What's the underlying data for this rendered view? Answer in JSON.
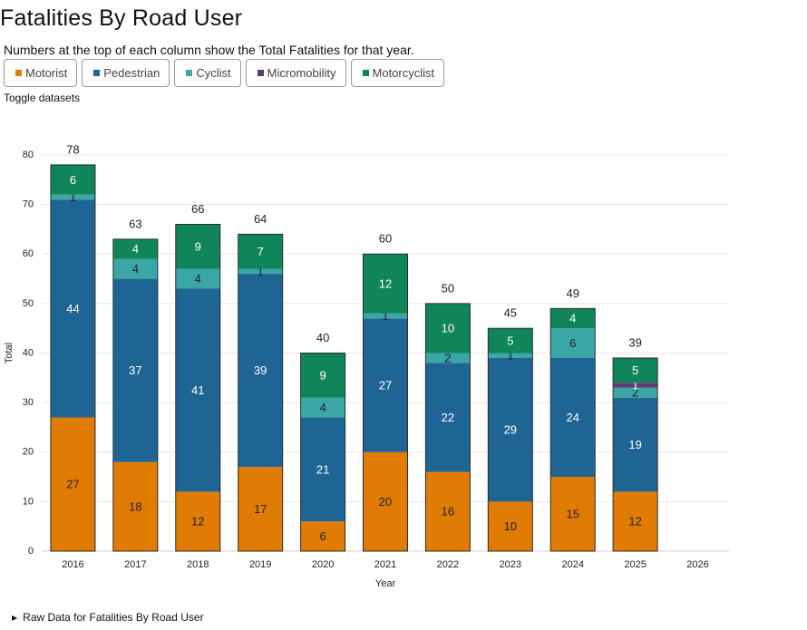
{
  "page": {
    "title": "Fatalities By Road User",
    "description": "Numbers at the top of each column show the Total Fatalities for that year.",
    "toggle_label": "Toggle datasets",
    "raw_data_label": "Raw Data for Fatalities By Road User"
  },
  "legend": [
    {
      "label": "Motorist",
      "color": "#e07b03"
    },
    {
      "label": "Pedestrian",
      "color": "#1f6594"
    },
    {
      "label": "Cyclist",
      "color": "#3aa6a6"
    },
    {
      "label": "Micromobility",
      "color": "#5a3f73"
    },
    {
      "label": "Motorcyclist",
      "color": "#10855a"
    }
  ],
  "chart_data": {
    "type": "bar",
    "stacked": true,
    "categories": [
      "2016",
      "2017",
      "2018",
      "2019",
      "2020",
      "2021",
      "2022",
      "2023",
      "2024",
      "2025",
      "2026"
    ],
    "series": [
      {
        "name": "Motorist",
        "color": "#e07b03",
        "label_color": "#222222",
        "values": [
          27,
          18,
          12,
          17,
          6,
          20,
          16,
          10,
          15,
          12,
          null
        ]
      },
      {
        "name": "Pedestrian",
        "color": "#1f6594",
        "label_color": "#ffffff",
        "values": [
          44,
          37,
          41,
          39,
          21,
          27,
          22,
          29,
          24,
          19,
          null
        ]
      },
      {
        "name": "Cyclist",
        "color": "#3aa6a6",
        "label_color": "#222222",
        "values": [
          1,
          4,
          4,
          1,
          4,
          1,
          2,
          1,
          6,
          2,
          null
        ]
      },
      {
        "name": "Micromobility",
        "color": "#5a3f73",
        "label_color": "#ffffff",
        "values": [
          0,
          0,
          0,
          0,
          0,
          0,
          0,
          0,
          0,
          1,
          null
        ]
      },
      {
        "name": "Motorcyclist",
        "color": "#10855a",
        "label_color": "#ffffff",
        "values": [
          6,
          4,
          9,
          7,
          9,
          12,
          10,
          5,
          4,
          5,
          null
        ]
      }
    ],
    "totals": [
      78,
      63,
      66,
      64,
      40,
      60,
      50,
      45,
      49,
      39,
      null
    ],
    "xlabel": "Year",
    "ylabel": "Total",
    "ylim": [
      0,
      80
    ],
    "yticks": [
      0,
      10,
      20,
      30,
      40,
      50,
      60,
      70,
      80
    ],
    "grid": true
  }
}
